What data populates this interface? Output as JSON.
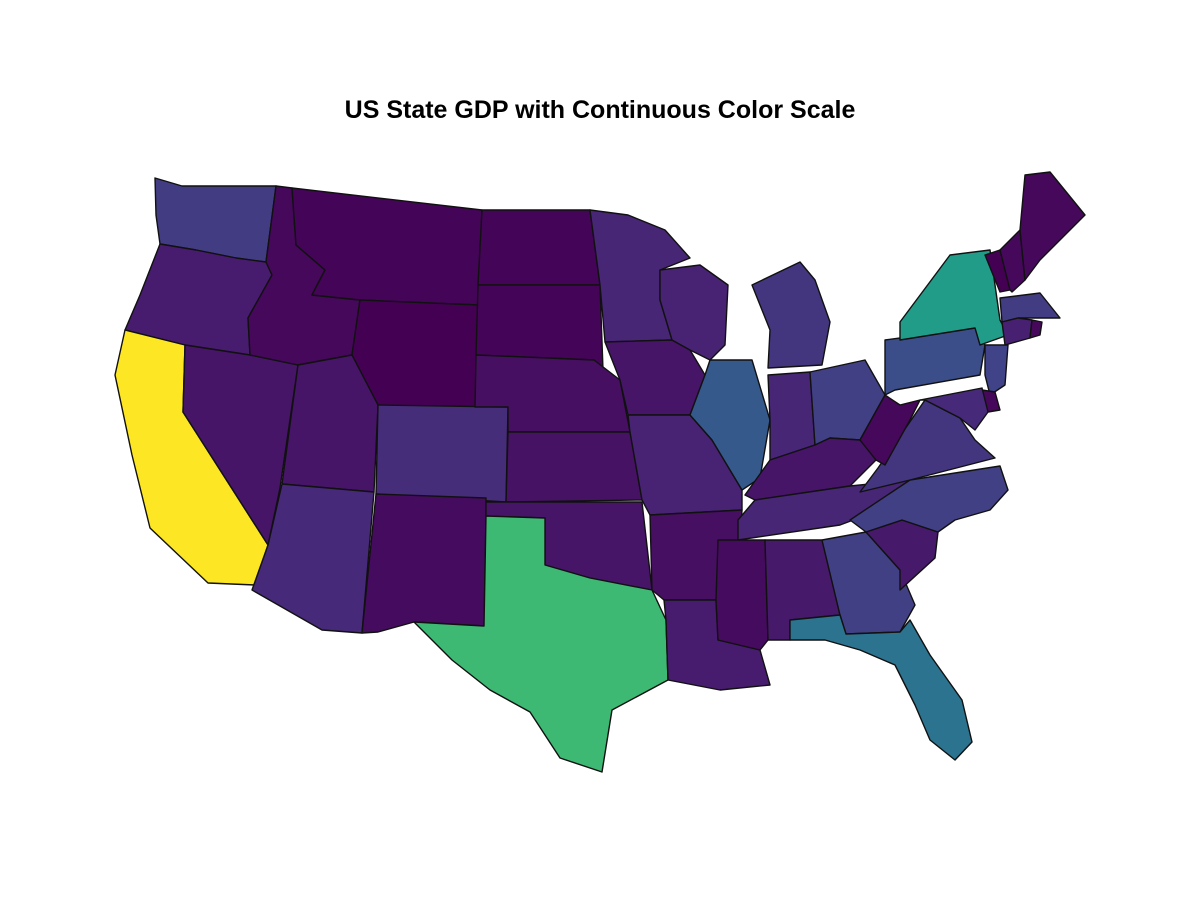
{
  "title": "US State GDP with Continuous Color Scale",
  "colorscale": "viridis",
  "states": [
    {
      "code": "WA",
      "level": 0.18
    },
    {
      "code": "OR",
      "level": 0.08
    },
    {
      "code": "CA",
      "level": 1.0
    },
    {
      "code": "NV",
      "level": 0.06
    },
    {
      "code": "ID",
      "level": 0.02
    },
    {
      "code": "MT",
      "level": 0.01
    },
    {
      "code": "WY",
      "level": 0.0
    },
    {
      "code": "UT",
      "level": 0.06
    },
    {
      "code": "AZ",
      "level": 0.12
    },
    {
      "code": "CO",
      "level": 0.13
    },
    {
      "code": "NM",
      "level": 0.03
    },
    {
      "code": "ND",
      "level": 0.01
    },
    {
      "code": "SD",
      "level": 0.01
    },
    {
      "code": "NE",
      "level": 0.04
    },
    {
      "code": "KS",
      "level": 0.05
    },
    {
      "code": "OK",
      "level": 0.06
    },
    {
      "code": "TX",
      "level": 0.68
    },
    {
      "code": "MN",
      "level": 0.11
    },
    {
      "code": "IA",
      "level": 0.06
    },
    {
      "code": "MO",
      "level": 0.1
    },
    {
      "code": "AR",
      "level": 0.04
    },
    {
      "code": "LA",
      "level": 0.08
    },
    {
      "code": "WI",
      "level": 0.1
    },
    {
      "code": "IL",
      "level": 0.28
    },
    {
      "code": "MI",
      "level": 0.16
    },
    {
      "code": "IN",
      "level": 0.11
    },
    {
      "code": "OH",
      "level": 0.19
    },
    {
      "code": "KY",
      "level": 0.06
    },
    {
      "code": "TN",
      "level": 0.11
    },
    {
      "code": "MS",
      "level": 0.03
    },
    {
      "code": "AL",
      "level": 0.07
    },
    {
      "code": "GA",
      "level": 0.19
    },
    {
      "code": "FL",
      "level": 0.38
    },
    {
      "code": "SC",
      "level": 0.07
    },
    {
      "code": "NC",
      "level": 0.19
    },
    {
      "code": "VA",
      "level": 0.16
    },
    {
      "code": "WV",
      "level": 0.02
    },
    {
      "code": "PA",
      "level": 0.24
    },
    {
      "code": "NY",
      "level": 0.55
    },
    {
      "code": "VT",
      "level": 0.0
    },
    {
      "code": "NH",
      "level": 0.02
    },
    {
      "code": "ME",
      "level": 0.02
    },
    {
      "code": "MA",
      "level": 0.18
    },
    {
      "code": "CT",
      "level": 0.09
    },
    {
      "code": "RI",
      "level": 0.02
    },
    {
      "code": "NJ",
      "level": 0.2
    },
    {
      "code": "DE",
      "level": 0.02
    },
    {
      "code": "MD",
      "level": 0.12
    }
  ]
}
